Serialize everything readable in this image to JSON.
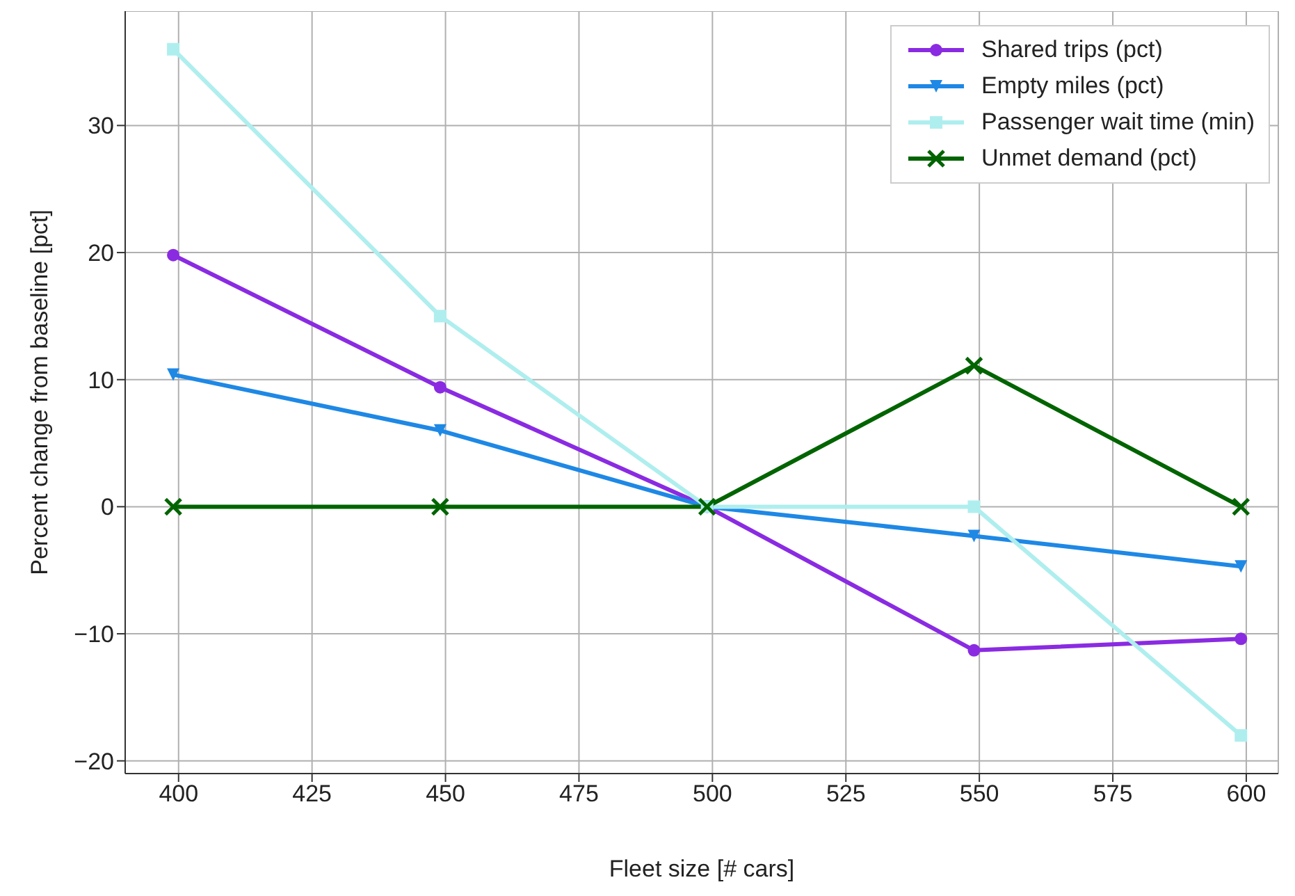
{
  "chart_data": {
    "type": "line",
    "xlabel": "Fleet size [# cars]",
    "ylabel": "Percent change from baseline [pct]",
    "x": [
      399,
      449,
      499,
      549,
      599
    ],
    "xlim": [
      390,
      606
    ],
    "xticks": [
      400,
      425,
      450,
      475,
      500,
      525,
      550,
      575,
      600
    ],
    "ylim": [
      -21,
      39
    ],
    "yticks": [
      -20,
      -10,
      0,
      10,
      20,
      30
    ],
    "grid": true,
    "legend": "top right",
    "series": [
      {
        "name": "Shared trips (pct)",
        "color": "#8a2be2",
        "marker": "circle",
        "values": [
          19.8,
          9.4,
          0,
          -11.3,
          -10.4
        ]
      },
      {
        "name": "Empty miles (pct)",
        "color": "#1e88e5",
        "marker": "triangle",
        "values": [
          10.4,
          6,
          0,
          -2.3,
          -4.7
        ]
      },
      {
        "name": "Passenger wait time (min)",
        "color": "#afeeee",
        "marker": "square",
        "values": [
          36,
          15,
          0,
          0,
          -18
        ]
      },
      {
        "name": "Unmet demand (pct)",
        "color": "#006400",
        "marker": "cross",
        "values": [
          0,
          0,
          0,
          11.1,
          0
        ]
      }
    ]
  }
}
